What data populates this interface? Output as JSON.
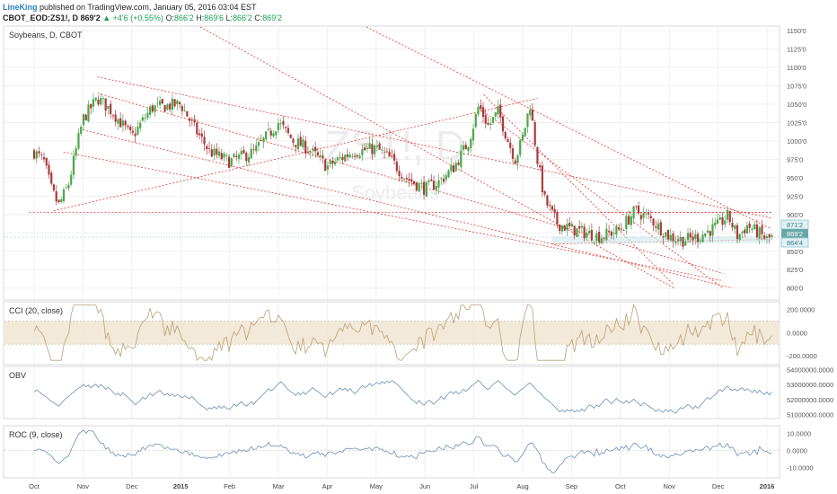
{
  "header": {
    "author": "LineKing",
    "published": "published on TradingView.com, January 05, 2016 03:04 EST"
  },
  "symbol_bar": {
    "symbol": "CBOT_EOD:ZS1!, D",
    "last": "869'2",
    "change_arrow": "triangle-up-icon",
    "change": "+4'6 (+0.55%)",
    "open_label": "O:",
    "open": "866'2",
    "high_label": "H:",
    "high": "869'6",
    "low_label": "L:",
    "low": "866'2",
    "close_label": "C:",
    "close": "869'2"
  },
  "main_pane": {
    "title": "Soybeans, D, CBOT",
    "watermark_symbol": "ZS1!, D",
    "watermark_name": "Soybeans",
    "price_tags": [
      "871'2",
      "869'2",
      "864'4"
    ]
  },
  "cci_pane": {
    "title": "CCI (20, close)"
  },
  "obv_pane": {
    "title": "OBV"
  },
  "roc_pane": {
    "title": "ROC (9, close)"
  },
  "x_axis": [
    "Oct",
    "Nov",
    "Dec",
    "2015",
    "Feb",
    "Mar",
    "Apr",
    "May",
    "Jun",
    "Jul",
    "Aug",
    "Sep",
    "Oct",
    "Nov",
    "Dec",
    "2016"
  ],
  "colors": {
    "up": "#26a69a",
    "down": "#ef5350",
    "candle_up": "#4ca64c",
    "candle_down": "#a83c3c",
    "trendline": "#e53935",
    "cci_band": "#efe4cf",
    "cci_line": "#b8a07a",
    "obv_line": "#6f8fb3",
    "roc_line": "#6f8fb3"
  },
  "chart_data": [
    {
      "type": "candlestick",
      "title": "Soybeans, D, CBOT",
      "y_ticks": [
        "1150'0",
        "1125'0",
        "1100'0",
        "1075'0",
        "1050'0",
        "1025'0",
        "1000'0",
        "975'0",
        "950'0",
        "925'0",
        "900'0",
        "875'0",
        "850'0",
        "825'0",
        "800'0"
      ],
      "ylim": [
        785,
        1155
      ],
      "x_ticks": [
        "Oct",
        "Nov",
        "Dec",
        "2015",
        "Feb",
        "Mar",
        "Apr",
        "May",
        "Jun",
        "Jul",
        "Aug",
        "Sep",
        "Oct",
        "Nov",
        "Dec",
        "2016"
      ],
      "last": 869.25,
      "anchors": [
        {
          "m": 0.0,
          "v": 985
        },
        {
          "m": 0.2,
          "v": 972
        },
        {
          "m": 0.35,
          "v": 935
        },
        {
          "m": 0.5,
          "v": 912
        },
        {
          "m": 0.7,
          "v": 940
        },
        {
          "m": 1.0,
          "v": 1030
        },
        {
          "m": 1.3,
          "v": 1058
        },
        {
          "m": 1.6,
          "v": 1040
        },
        {
          "m": 2.0,
          "v": 1005
        },
        {
          "m": 2.4,
          "v": 1045
        },
        {
          "m": 3.0,
          "v": 1050
        },
        {
          "m": 3.3,
          "v": 1015
        },
        {
          "m": 3.6,
          "v": 985
        },
        {
          "m": 4.0,
          "v": 972
        },
        {
          "m": 4.5,
          "v": 985
        },
        {
          "m": 5.0,
          "v": 1025
        },
        {
          "m": 5.3,
          "v": 1000
        },
        {
          "m": 5.6,
          "v": 990
        },
        {
          "m": 6.0,
          "v": 965
        },
        {
          "m": 6.5,
          "v": 985
        },
        {
          "m": 7.0,
          "v": 990
        },
        {
          "m": 7.3,
          "v": 975
        },
        {
          "m": 7.6,
          "v": 950
        },
        {
          "m": 8.0,
          "v": 935
        },
        {
          "m": 8.3,
          "v": 945
        },
        {
          "m": 8.6,
          "v": 965
        },
        {
          "m": 8.9,
          "v": 1000
        },
        {
          "m": 9.1,
          "v": 1048
        },
        {
          "m": 9.3,
          "v": 1020
        },
        {
          "m": 9.5,
          "v": 1040
        },
        {
          "m": 9.7,
          "v": 1000
        },
        {
          "m": 9.85,
          "v": 975
        },
        {
          "m": 10.0,
          "v": 1005
        },
        {
          "m": 10.15,
          "v": 1050
        },
        {
          "m": 10.3,
          "v": 975
        },
        {
          "m": 10.45,
          "v": 920
        },
        {
          "m": 10.7,
          "v": 888
        },
        {
          "m": 11.0,
          "v": 880
        },
        {
          "m": 11.3,
          "v": 875
        },
        {
          "m": 11.6,
          "v": 870
        },
        {
          "m": 12.0,
          "v": 880
        },
        {
          "m": 12.3,
          "v": 905
        },
        {
          "m": 12.6,
          "v": 895
        },
        {
          "m": 13.0,
          "v": 870
        },
        {
          "m": 13.3,
          "v": 865
        },
        {
          "m": 13.6,
          "v": 870
        },
        {
          "m": 14.0,
          "v": 885
        },
        {
          "m": 14.2,
          "v": 898
        },
        {
          "m": 14.4,
          "v": 870
        },
        {
          "m": 14.6,
          "v": 885
        },
        {
          "m": 14.8,
          "v": 876
        },
        {
          "m": 15.0,
          "v": 866
        },
        {
          "m": 15.1,
          "v": 869
        }
      ],
      "trendlines": [
        {
          "from": {
            "m": -0.1,
            "v": 903
          },
          "to": {
            "m": 15.1,
            "v": 903
          }
        },
        {
          "from": {
            "m": 0.4,
            "v": 905
          },
          "to": {
            "m": 10.3,
            "v": 1058
          }
        },
        {
          "from": {
            "m": 1.3,
            "v": 1087
          },
          "to": {
            "m": 15.1,
            "v": 895
          }
        },
        {
          "from": {
            "m": 1.3,
            "v": 1065
          },
          "to": {
            "m": 14.1,
            "v": 820
          }
        },
        {
          "from": {
            "m": 1.0,
            "v": 1015
          },
          "to": {
            "m": 14.3,
            "v": 800
          }
        },
        {
          "from": {
            "m": 0.6,
            "v": 985
          },
          "to": {
            "m": 14.1,
            "v": 810
          }
        },
        {
          "from": {
            "m": 3.4,
            "v": 1155
          },
          "to": {
            "m": 13.1,
            "v": 800
          }
        },
        {
          "from": {
            "m": 6.8,
            "v": 1155
          },
          "to": {
            "m": 15.1,
            "v": 880
          }
        },
        {
          "from": {
            "m": 9.2,
            "v": 1063
          },
          "to": {
            "m": 13.1,
            "v": 804
          }
        },
        {
          "from": {
            "m": 9.2,
            "v": 1040
          },
          "to": {
            "m": 14.1,
            "v": 800
          }
        },
        {
          "from": {
            "m": 11.6,
            "v": 903
          },
          "to": {
            "m": 15.1,
            "v": 903
          }
        },
        {
          "from": {
            "m": 10.6,
            "v": 860
          },
          "to": {
            "m": 15.0,
            "v": 866
          }
        }
      ]
    },
    {
      "type": "line",
      "title": "CCI (20, close)",
      "y_ticks": [
        "200.0000",
        "0.0000",
        "-200.0000"
      ],
      "tick_values": [
        200,
        0,
        -200
      ],
      "band": [
        -100,
        100
      ],
      "ylim": [
        -270,
        260
      ]
    },
    {
      "type": "line",
      "title": "OBV",
      "y_ticks": [
        "54000000.0000",
        "53000000.0000",
        "52000000.0000",
        "51000000.0000"
      ],
      "tick_values": [
        54000000,
        53000000,
        52000000,
        51000000
      ],
      "ylim": [
        50800000,
        54150000
      ]
    },
    {
      "type": "line",
      "title": "ROC (9, close)",
      "y_ticks": [
        "10.0000",
        "0.0000",
        "-10.0000"
      ],
      "tick_values": [
        10,
        0,
        -10
      ],
      "ylim": [
        -15.5,
        14
      ]
    }
  ]
}
